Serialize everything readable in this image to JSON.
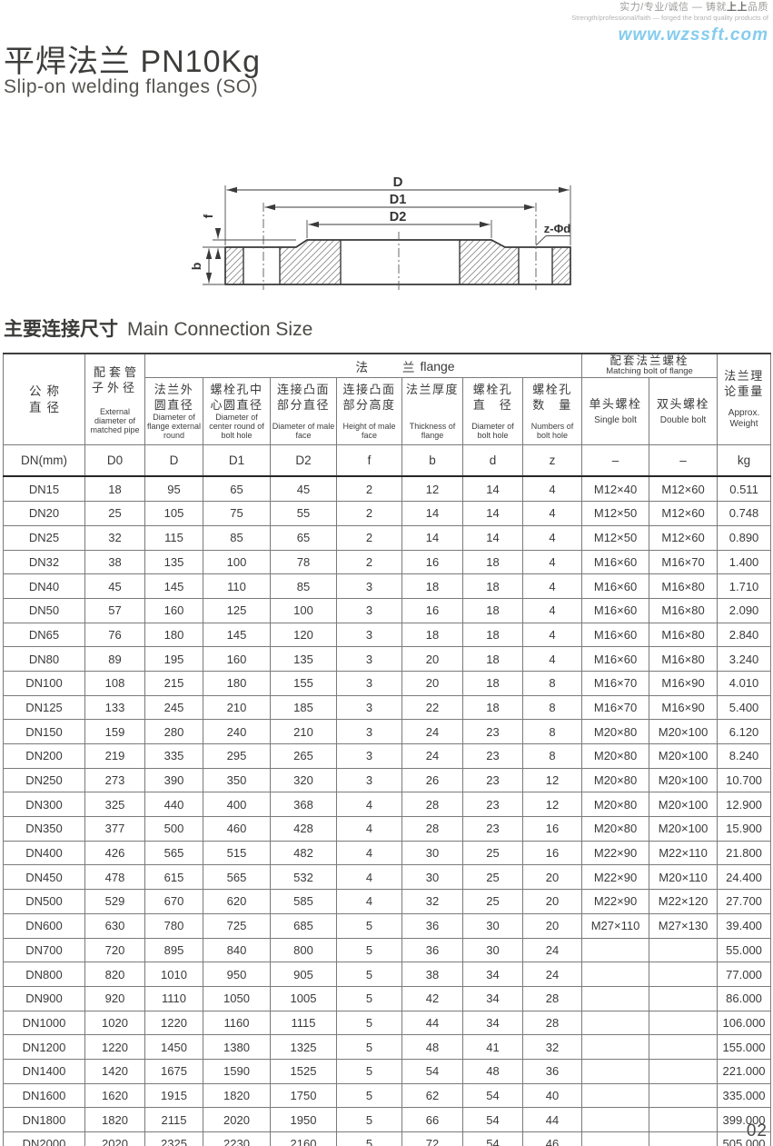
{
  "brand": {
    "slogan_cn_prefix": "实力/专业/诚信 — 铸就",
    "slogan_cn_bold": "上上",
    "slogan_cn_suffix": "品质",
    "slogan_en": "Strength/professional/faith — forged the brand quality products of",
    "website": "www.wzssft.com"
  },
  "title": {
    "cn": "平焊法兰 PN10Kg",
    "en": "Slip-on welding flanges (SO)"
  },
  "section": {
    "cn": "主要连接尺寸",
    "en": "Main Connection Size"
  },
  "diagram": {
    "labels": {
      "d": "D",
      "d1": "D1",
      "d2": "D2",
      "f": "f",
      "b": "b",
      "bolt": "z-Φd"
    }
  },
  "table": {
    "header": {
      "col_dn": {
        "cn1": "公称",
        "cn2": "直径"
      },
      "col_d0": {
        "cn": "配套管子外径",
        "en": "External diameter of matched pipe"
      },
      "flange_group": {
        "cn_left": "法",
        "cn_right": "兰",
        "en": "flange"
      },
      "flange_cols": [
        {
          "cn1": "法兰外",
          "cn2": "圆直径",
          "en": "Diameter of flange external round"
        },
        {
          "cn1": "螺栓孔中",
          "cn2": "心圆直径",
          "en": "Diameter of center round of bolt hole"
        },
        {
          "cn1": "连接凸面",
          "cn2": "部分直径",
          "en": "Diameter of male face"
        },
        {
          "cn1": "连接凸面",
          "cn2": "部分高度",
          "en": "Height of male face"
        },
        {
          "cn1": "法兰厚度",
          "cn2": "",
          "en": "Thickness of flange"
        },
        {
          "cn1": "螺栓孔",
          "cn2": "直　径",
          "en": "Diameter of bolt hole"
        },
        {
          "cn1": "螺栓孔",
          "cn2": "数　量",
          "en": "Numbers of bolt hole"
        }
      ],
      "bolt_group": {
        "cn": "配套法兰螺栓",
        "en": "Matching bolt of flange"
      },
      "bolt_cols": [
        {
          "cn": "单头螺栓",
          "en": "Single bolt"
        },
        {
          "cn": "双头螺栓",
          "en": "Double bolt"
        }
      ],
      "col_weight": {
        "cn1": "法兰理",
        "cn2": "论重量",
        "en": "Approx. Weight"
      }
    },
    "units": [
      "DN(mm)",
      "D0",
      "D",
      "D1",
      "D2",
      "f",
      "b",
      "d",
      "z",
      "–",
      "–",
      "kg"
    ],
    "rows": [
      [
        "DN15",
        "18",
        "95",
        "65",
        "45",
        "2",
        "12",
        "14",
        "4",
        "M12×40",
        "M12×60",
        "0.511"
      ],
      [
        "DN20",
        "25",
        "105",
        "75",
        "55",
        "2",
        "14",
        "14",
        "4",
        "M12×50",
        "M12×60",
        "0.748"
      ],
      [
        "DN25",
        "32",
        "115",
        "85",
        "65",
        "2",
        "14",
        "14",
        "4",
        "M12×50",
        "M12×60",
        "0.890"
      ],
      [
        "DN32",
        "38",
        "135",
        "100",
        "78",
        "2",
        "16",
        "18",
        "4",
        "M16×60",
        "M16×70",
        "1.400"
      ],
      [
        "DN40",
        "45",
        "145",
        "110",
        "85",
        "3",
        "18",
        "18",
        "4",
        "M16×60",
        "M16×80",
        "1.710"
      ],
      [
        "DN50",
        "57",
        "160",
        "125",
        "100",
        "3",
        "16",
        "18",
        "4",
        "M16×60",
        "M16×80",
        "2.090"
      ],
      [
        "DN65",
        "76",
        "180",
        "145",
        "120",
        "3",
        "18",
        "18",
        "4",
        "M16×60",
        "M16×80",
        "2.840"
      ],
      [
        "DN80",
        "89",
        "195",
        "160",
        "135",
        "3",
        "20",
        "18",
        "4",
        "M16×60",
        "M16×80",
        "3.240"
      ],
      [
        "DN100",
        "108",
        "215",
        "180",
        "155",
        "3",
        "20",
        "18",
        "8",
        "M16×70",
        "M16×90",
        "4.010"
      ],
      [
        "DN125",
        "133",
        "245",
        "210",
        "185",
        "3",
        "22",
        "18",
        "8",
        "M16×70",
        "M16×90",
        "5.400"
      ],
      [
        "DN150",
        "159",
        "280",
        "240",
        "210",
        "3",
        "24",
        "23",
        "8",
        "M20×80",
        "M20×100",
        "6.120"
      ],
      [
        "DN200",
        "219",
        "335",
        "295",
        "265",
        "3",
        "24",
        "23",
        "8",
        "M20×80",
        "M20×100",
        "8.240"
      ],
      [
        "DN250",
        "273",
        "390",
        "350",
        "320",
        "3",
        "26",
        "23",
        "12",
        "M20×80",
        "M20×100",
        "10.700"
      ],
      [
        "DN300",
        "325",
        "440",
        "400",
        "368",
        "4",
        "28",
        "23",
        "12",
        "M20×80",
        "M20×100",
        "12.900"
      ],
      [
        "DN350",
        "377",
        "500",
        "460",
        "428",
        "4",
        "28",
        "23",
        "16",
        "M20×80",
        "M20×100",
        "15.900"
      ],
      [
        "DN400",
        "426",
        "565",
        "515",
        "482",
        "4",
        "30",
        "25",
        "16",
        "M22×90",
        "M22×110",
        "21.800"
      ],
      [
        "DN450",
        "478",
        "615",
        "565",
        "532",
        "4",
        "30",
        "25",
        "20",
        "M22×90",
        "M20×110",
        "24.400"
      ],
      [
        "DN500",
        "529",
        "670",
        "620",
        "585",
        "4",
        "32",
        "25",
        "20",
        "M22×90",
        "M22×120",
        "27.700"
      ],
      [
        "DN600",
        "630",
        "780",
        "725",
        "685",
        "5",
        "36",
        "30",
        "20",
        "M27×110",
        "M27×130",
        "39.400"
      ],
      [
        "DN700",
        "720",
        "895",
        "840",
        "800",
        "5",
        "36",
        "30",
        "24",
        "",
        "",
        "55.000"
      ],
      [
        "DN800",
        "820",
        "1010",
        "950",
        "905",
        "5",
        "38",
        "34",
        "24",
        "",
        "",
        "77.000"
      ],
      [
        "DN900",
        "920",
        "1110",
        "1050",
        "1005",
        "5",
        "42",
        "34",
        "28",
        "",
        "",
        "86.000"
      ],
      [
        "DN1000",
        "1020",
        "1220",
        "1160",
        "1115",
        "5",
        "44",
        "34",
        "28",
        "",
        "",
        "106.000"
      ],
      [
        "DN1200",
        "1220",
        "1450",
        "1380",
        "1325",
        "5",
        "48",
        "41",
        "32",
        "",
        "",
        "155.000"
      ],
      [
        "DN1400",
        "1420",
        "1675",
        "1590",
        "1525",
        "5",
        "54",
        "48",
        "36",
        "",
        "",
        "221.000"
      ],
      [
        "DN1600",
        "1620",
        "1915",
        "1820",
        "1750",
        "5",
        "62",
        "54",
        "40",
        "",
        "",
        "335.000"
      ],
      [
        "DN1800",
        "1820",
        "2115",
        "2020",
        "1950",
        "5",
        "66",
        "54",
        "44",
        "",
        "",
        "399.000"
      ],
      [
        "DN2000",
        "2020",
        "2325",
        "2230",
        "2160",
        "5",
        "72",
        "54",
        "46",
        "",
        "",
        "505.000"
      ]
    ]
  },
  "footer": {
    "page": "02"
  },
  "colors": {
    "accent_blue": "#85ccee",
    "line_dark": "#3a3a3a"
  }
}
